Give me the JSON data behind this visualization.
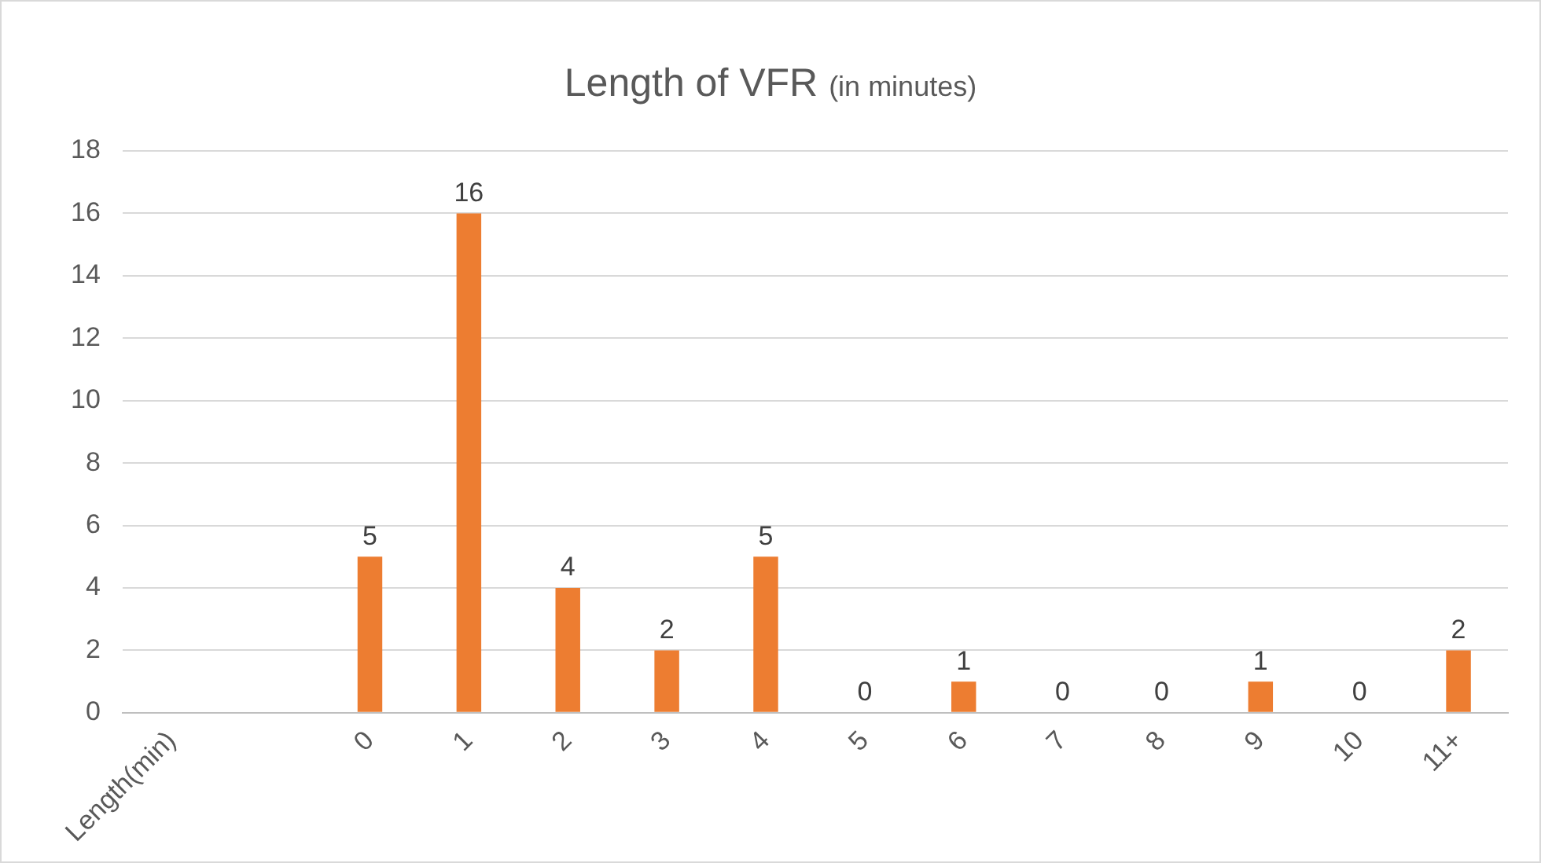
{
  "chart_data": {
    "type": "bar",
    "title": "Length of VFR",
    "subtitle": "(in minutes)",
    "categories": [
      "Length(min)",
      null,
      "0",
      "1",
      "2",
      "3",
      "4",
      "5",
      "6",
      "7",
      "8",
      "9",
      "10",
      "11+"
    ],
    "values": [
      null,
      null,
      5,
      16,
      4,
      2,
      5,
      0,
      1,
      0,
      0,
      1,
      0,
      2
    ],
    "color": "#ed7d31",
    "ylim": [
      0,
      18
    ],
    "yticks": [
      0,
      2,
      4,
      6,
      8,
      10,
      12,
      14,
      16,
      18
    ],
    "grid": "y",
    "legend": false,
    "data_labels": true
  }
}
